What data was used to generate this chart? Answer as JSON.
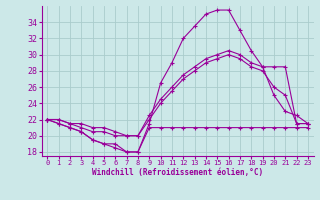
{
  "xlabel": "Windchill (Refroidissement éolien,°C)",
  "hours": [
    0,
    1,
    2,
    3,
    4,
    5,
    6,
    7,
    8,
    9,
    10,
    11,
    12,
    13,
    14,
    15,
    16,
    17,
    18,
    19,
    20,
    21,
    22,
    23
  ],
  "series": [
    [
      22,
      21.5,
      21,
      20.5,
      19.5,
      19,
      18.5,
      18,
      18,
      21,
      21,
      21,
      21,
      21,
      21,
      21,
      21,
      21,
      21,
      21,
      21,
      21,
      21,
      21
    ],
    [
      22,
      21.5,
      21,
      20.5,
      19.5,
      19,
      19,
      18,
      18,
      21.5,
      26.5,
      29,
      32,
      33.5,
      35,
      35.5,
      35.5,
      33,
      30.5,
      28.5,
      25,
      23,
      22.5,
      21.5
    ],
    [
      22,
      22,
      21.5,
      21,
      20.5,
      20.5,
      20,
      20,
      20,
      22,
      24,
      25.5,
      27,
      28,
      29,
      29.5,
      30,
      29.5,
      28.5,
      28,
      26,
      25,
      21.5,
      21.5
    ],
    [
      22,
      22,
      21.5,
      21.5,
      21,
      21,
      20.5,
      20,
      20,
      22.5,
      24.5,
      26,
      27.5,
      28.5,
      29.5,
      30,
      30.5,
      30,
      29,
      28.5,
      28.5,
      28.5,
      21.5,
      21.5
    ]
  ],
  "line_color": "#990099",
  "marker": "+",
  "bg_color": "#cce8e8",
  "grid_color": "#aacccc",
  "ylim": [
    17.5,
    36
  ],
  "yticks": [
    18,
    20,
    22,
    24,
    26,
    28,
    30,
    32,
    34
  ],
  "xticks": [
    0,
    1,
    2,
    3,
    4,
    5,
    6,
    7,
    8,
    9,
    10,
    11,
    12,
    13,
    14,
    15,
    16,
    17,
    18,
    19,
    20,
    21,
    22,
    23
  ]
}
